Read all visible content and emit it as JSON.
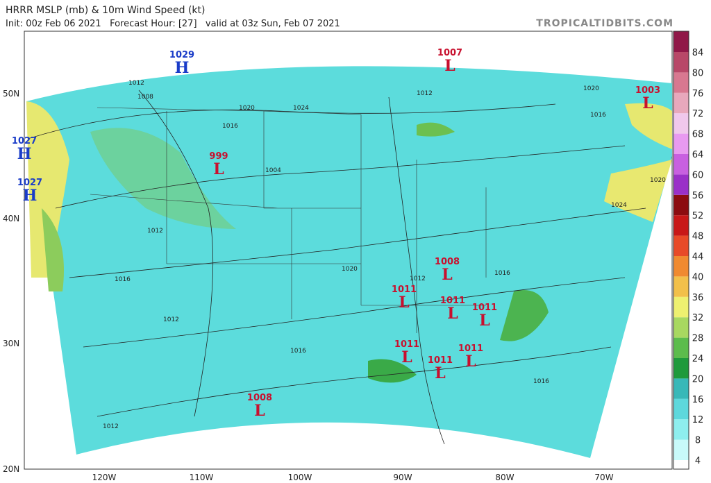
{
  "header": {
    "title": "HRRR MSLP (mb) & 10m Wind Speed (kt)",
    "subtitle": "Init: 00z Feb 06 2021   Forecast Hour: [27]   valid at 03z Sun, Feb 07 2021",
    "watermark": "TROPICALTIDBITS.COM"
  },
  "latitudes": [
    "50N",
    "40N",
    "30N",
    "20N"
  ],
  "longitudes": [
    "120W",
    "110W",
    "100W",
    "90W",
    "80W",
    "70W"
  ],
  "pressure_centers": [
    {
      "value": "1029",
      "letter": "H"
    },
    {
      "value": "1007",
      "letter": "L"
    },
    {
      "value": "1003",
      "letter": "L"
    },
    {
      "value": "1027",
      "letter": "H"
    },
    {
      "value": "1027",
      "letter": "H"
    },
    {
      "value": "999",
      "letter": "L"
    },
    {
      "value": "1008",
      "letter": "L"
    },
    {
      "value": "1011",
      "letter": "L"
    },
    {
      "value": "1011",
      "letter": "L"
    },
    {
      "value": "1011",
      "letter": "L"
    },
    {
      "value": "1011",
      "letter": "L"
    },
    {
      "value": "1011",
      "letter": "L"
    },
    {
      "value": "1011",
      "letter": "L"
    },
    {
      "value": "1008",
      "letter": "L"
    }
  ],
  "contour_labels": [
    "1012",
    "1008",
    "1016",
    "1020",
    "1024",
    "1004",
    "1012",
    "1016",
    "1020",
    "1012",
    "1016",
    "1020",
    "1012",
    "1016",
    "1012",
    "1016",
    "1024",
    "1020",
    "1016",
    "1012"
  ],
  "colorbar": {
    "ticks": [
      4,
      8,
      12,
      16,
      20,
      24,
      28,
      32,
      36,
      40,
      44,
      48,
      52,
      56,
      60,
      64,
      68,
      72,
      76,
      80,
      84
    ],
    "colors": [
      "#ffffff",
      "#c8fafa",
      "#8eeeee",
      "#5ed8dc",
      "#38b8b8",
      "#1f9a3c",
      "#5cbc4c",
      "#a8d860",
      "#eef070",
      "#f2c04a",
      "#f08a30",
      "#e84a28",
      "#c81818",
      "#8c0c10",
      "#9a30c8",
      "#c860e0",
      "#e89af0",
      "#f0c8ec",
      "#e8a8bc",
      "#d87890",
      "#b84868",
      "#901848"
    ]
  }
}
